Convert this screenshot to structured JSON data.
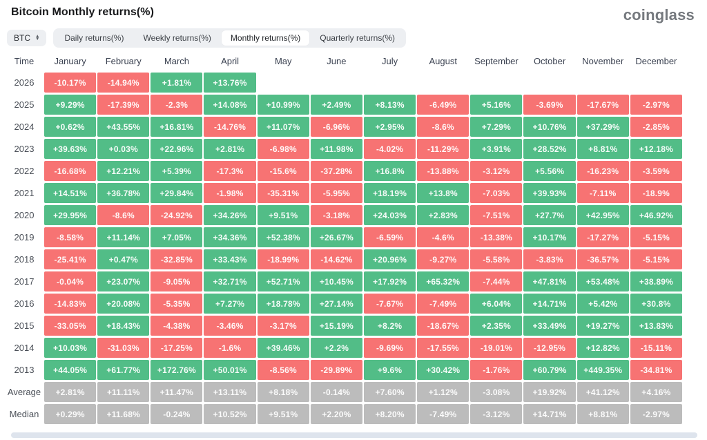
{
  "header": {
    "title": "Bitcoin Monthly returns(%)",
    "logo": "coinglass"
  },
  "controls": {
    "symbol": "BTC",
    "tabs": [
      {
        "label": "Daily returns(%)",
        "active": false
      },
      {
        "label": "Weekly returns(%)",
        "active": false
      },
      {
        "label": "Monthly returns(%)",
        "active": true
      },
      {
        "label": "Quarterly returns(%)",
        "active": false
      }
    ]
  },
  "chart_data": {
    "type": "heatmap",
    "title": "Bitcoin Monthly returns(%)",
    "columns": [
      "Time",
      "January",
      "February",
      "March",
      "April",
      "May",
      "June",
      "July",
      "August",
      "September",
      "October",
      "November",
      "December"
    ],
    "rows": [
      {
        "label": "2026",
        "values": [
          "-10.17%",
          "-14.94%",
          "+1.81%",
          "+13.76%",
          "",
          "",
          "",
          "",
          "",
          "",
          "",
          ""
        ]
      },
      {
        "label": "2025",
        "values": [
          "+9.29%",
          "-17.39%",
          "-2.3%",
          "+14.08%",
          "+10.99%",
          "+2.49%",
          "+8.13%",
          "-6.49%",
          "+5.16%",
          "-3.69%",
          "-17.67%",
          "-2.97%"
        ]
      },
      {
        "label": "2024",
        "values": [
          "+0.62%",
          "+43.55%",
          "+16.81%",
          "-14.76%",
          "+11.07%",
          "-6.96%",
          "+2.95%",
          "-8.6%",
          "+7.29%",
          "+10.76%",
          "+37.29%",
          "-2.85%"
        ]
      },
      {
        "label": "2023",
        "values": [
          "+39.63%",
          "+0.03%",
          "+22.96%",
          "+2.81%",
          "-6.98%",
          "+11.98%",
          "-4.02%",
          "-11.29%",
          "+3.91%",
          "+28.52%",
          "+8.81%",
          "+12.18%"
        ]
      },
      {
        "label": "2022",
        "values": [
          "-16.68%",
          "+12.21%",
          "+5.39%",
          "-17.3%",
          "-15.6%",
          "-37.28%",
          "+16.8%",
          "-13.88%",
          "-3.12%",
          "+5.56%",
          "-16.23%",
          "-3.59%"
        ]
      },
      {
        "label": "2021",
        "values": [
          "+14.51%",
          "+36.78%",
          "+29.84%",
          "-1.98%",
          "-35.31%",
          "-5.95%",
          "+18.19%",
          "+13.8%",
          "-7.03%",
          "+39.93%",
          "-7.11%",
          "-18.9%"
        ]
      },
      {
        "label": "2020",
        "values": [
          "+29.95%",
          "-8.6%",
          "-24.92%",
          "+34.26%",
          "+9.51%",
          "-3.18%",
          "+24.03%",
          "+2.83%",
          "-7.51%",
          "+27.7%",
          "+42.95%",
          "+46.92%"
        ]
      },
      {
        "label": "2019",
        "values": [
          "-8.58%",
          "+11.14%",
          "+7.05%",
          "+34.36%",
          "+52.38%",
          "+26.67%",
          "-6.59%",
          "-4.6%",
          "-13.38%",
          "+10.17%",
          "-17.27%",
          "-5.15%"
        ]
      },
      {
        "label": "2018",
        "values": [
          "-25.41%",
          "+0.47%",
          "-32.85%",
          "+33.43%",
          "-18.99%",
          "-14.62%",
          "+20.96%",
          "-9.27%",
          "-5.58%",
          "-3.83%",
          "-36.57%",
          "-5.15%"
        ]
      },
      {
        "label": "2017",
        "values": [
          "-0.04%",
          "+23.07%",
          "-9.05%",
          "+32.71%",
          "+52.71%",
          "+10.45%",
          "+17.92%",
          "+65.32%",
          "-7.44%",
          "+47.81%",
          "+53.48%",
          "+38.89%"
        ]
      },
      {
        "label": "2016",
        "values": [
          "-14.83%",
          "+20.08%",
          "-5.35%",
          "+7.27%",
          "+18.78%",
          "+27.14%",
          "-7.67%",
          "-7.49%",
          "+6.04%",
          "+14.71%",
          "+5.42%",
          "+30.8%"
        ]
      },
      {
        "label": "2015",
        "values": [
          "-33.05%",
          "+18.43%",
          "-4.38%",
          "-3.46%",
          "-3.17%",
          "+15.19%",
          "+8.2%",
          "-18.67%",
          "+2.35%",
          "+33.49%",
          "+19.27%",
          "+13.83%"
        ]
      },
      {
        "label": "2014",
        "values": [
          "+10.03%",
          "-31.03%",
          "-17.25%",
          "-1.6%",
          "+39.46%",
          "+2.2%",
          "-9.69%",
          "-17.55%",
          "-19.01%",
          "-12.95%",
          "+12.82%",
          "-15.11%"
        ]
      },
      {
        "label": "2013",
        "values": [
          "+44.05%",
          "+61.77%",
          "+172.76%",
          "+50.01%",
          "-8.56%",
          "-29.89%",
          "+9.6%",
          "+30.42%",
          "-1.76%",
          "+60.79%",
          "+449.35%",
          "-34.81%"
        ]
      },
      {
        "label": "Average",
        "style": "gray",
        "values": [
          "+2.81%",
          "+11.11%",
          "+11.47%",
          "+13.11%",
          "+8.18%",
          "-0.14%",
          "+7.60%",
          "+1.12%",
          "-3.08%",
          "+19.92%",
          "+41.12%",
          "+4.16%"
        ]
      },
      {
        "label": "Median",
        "style": "gray",
        "values": [
          "+0.29%",
          "+11.68%",
          "-0.24%",
          "+10.52%",
          "+9.51%",
          "+2.20%",
          "+8.20%",
          "-7.49%",
          "-3.12%",
          "+14.71%",
          "+8.81%",
          "-2.97%"
        ]
      }
    ],
    "colors": {
      "positive": "#52bd87",
      "negative": "#f77373",
      "neutral": "#bcbcbc"
    },
    "legend": "green = positive monthly return, red = negative monthly return, gray = Average/Median summary rows"
  }
}
